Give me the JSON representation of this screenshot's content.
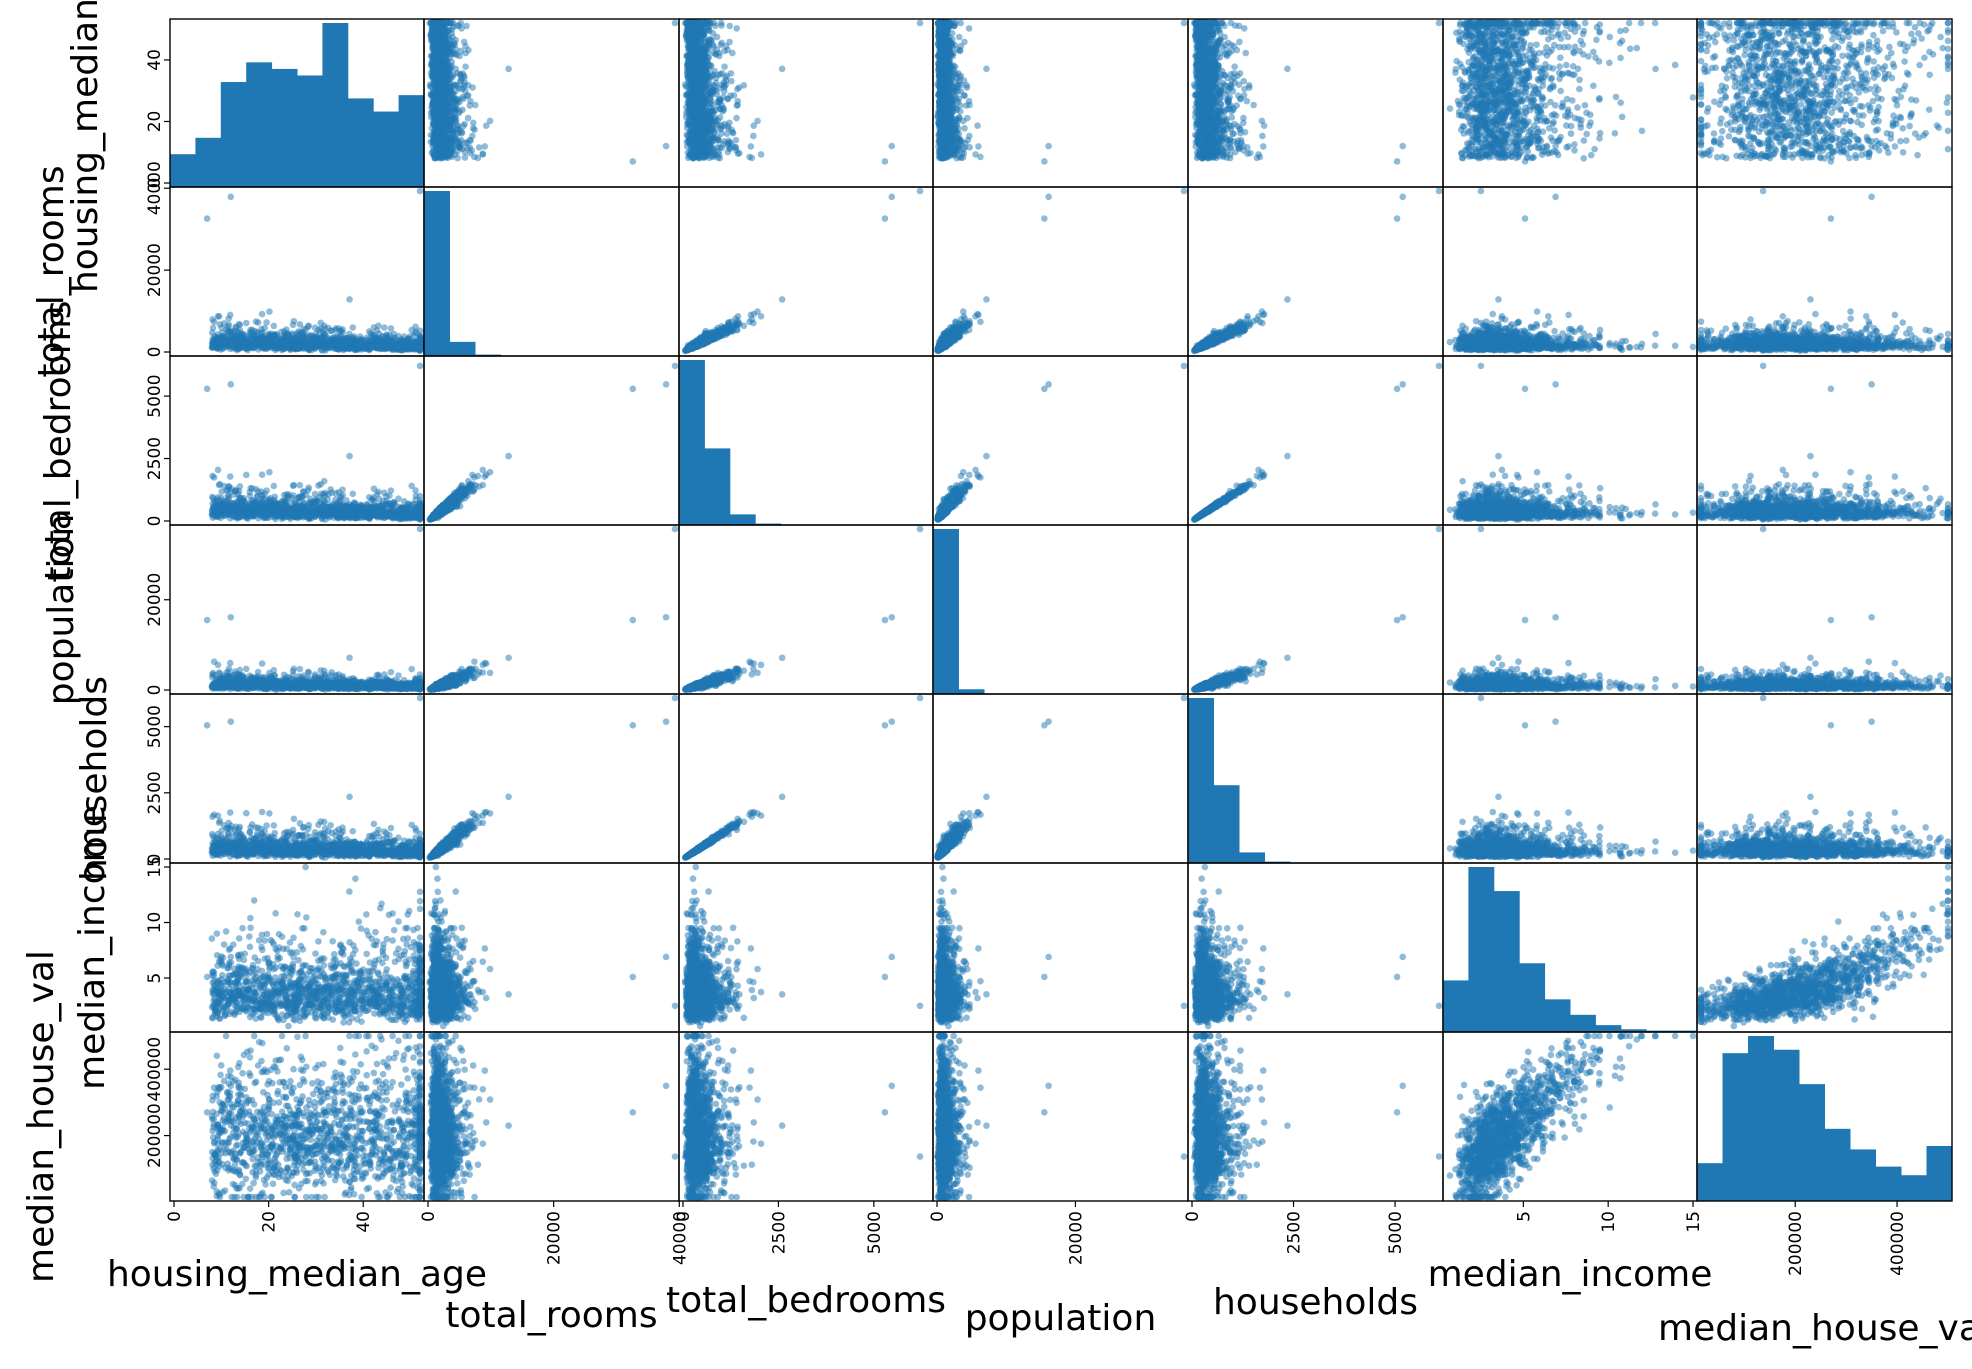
{
  "chart_data": {
    "type": "scatter_matrix",
    "variables": [
      "housing_median_age",
      "total_rooms",
      "total_bedrooms",
      "population",
      "households",
      "median_income",
      "median_house_value"
    ],
    "display_labels": [
      "housing_median_age",
      "total_rooms",
      "total_bedrooms",
      "population",
      "households",
      "median_income",
      "median_house_val"
    ],
    "ranges": {
      "housing_median_age": [
        0,
        52
      ],
      "total_rooms": [
        0,
        39320
      ],
      "total_bedrooms": [
        0,
        6445
      ],
      "population": [
        0,
        35682
      ],
      "households": [
        0,
        6082
      ],
      "median_income": [
        0.5,
        15.0
      ],
      "median_house_value": [
        15000,
        500001
      ]
    },
    "ticks": {
      "housing_median_age": [
        {
          "v": 0,
          "t": "0"
        },
        {
          "v": 20,
          "t": "20"
        },
        {
          "v": 40,
          "t": "40"
        }
      ],
      "total_rooms": [
        {
          "v": 0,
          "t": "0"
        },
        {
          "v": 20000,
          "t": "20000"
        },
        {
          "v": 40000,
          "t": "40000"
        }
      ],
      "total_bedrooms": [
        {
          "v": 0,
          "t": "0"
        },
        {
          "v": 2500,
          "t": "2500"
        },
        {
          "v": 5000,
          "t": "5000"
        }
      ],
      "population": [
        {
          "v": 0,
          "t": "0"
        },
        {
          "v": 20000,
          "t": "20000"
        }
      ],
      "households": [
        {
          "v": 0,
          "t": "0"
        },
        {
          "v": 2500,
          "t": "2500"
        },
        {
          "v": 5000,
          "t": "5000"
        }
      ],
      "median_income": [
        {
          "v": 5,
          "t": "5"
        },
        {
          "v": 10,
          "t": "10"
        },
        {
          "v": 15,
          "t": "15"
        }
      ],
      "median_house_value": [
        {
          "v": 200000,
          "t": "200000"
        },
        {
          "v": 400000,
          "t": "400000"
        }
      ]
    },
    "histograms": {
      "housing_median_age": [
        10,
        15,
        32,
        38,
        36,
        34,
        50,
        27,
        23,
        28
      ],
      "total_rooms": [
        140,
        12,
        1.2,
        0.15,
        0.05,
        0.02,
        0.01,
        0,
        0,
        0
      ],
      "total_bedrooms": [
        140,
        65,
        9,
        1.2,
        0.2,
        0.05,
        0.02,
        0,
        0,
        0
      ],
      "population": [
        140,
        4,
        0.3,
        0.05,
        0,
        0,
        0,
        0,
        0,
        0
      ],
      "households": [
        140,
        66,
        9,
        1.2,
        0.2,
        0.05,
        0.02,
        0,
        0,
        0
      ],
      "median_income": [
        15,
        48,
        41,
        20,
        9.5,
        5,
        2,
        0.8,
        0.4,
        0.4
      ],
      "median_house_value": [
        11,
        43,
        48,
        44,
        34,
        21,
        15,
        10,
        7.5,
        16
      ]
    },
    "grid": false,
    "marker_color": "#1f77b4",
    "marker_alpha": 0.5
  }
}
